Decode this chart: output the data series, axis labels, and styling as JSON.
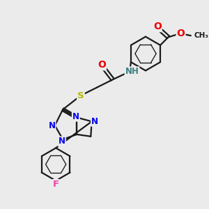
{
  "bg_color": "#ebebeb",
  "bond_color": "#1a1a1a",
  "bond_width": 1.6,
  "atom_colors": {
    "N": "#0000ee",
    "O": "#ee0000",
    "S": "#b8b800",
    "F": "#ee44aa",
    "H": "#3a8080",
    "C": "#1a1a1a"
  },
  "font_size": 8.5,
  "figsize": [
    3.0,
    3.0
  ],
  "dpi": 100
}
